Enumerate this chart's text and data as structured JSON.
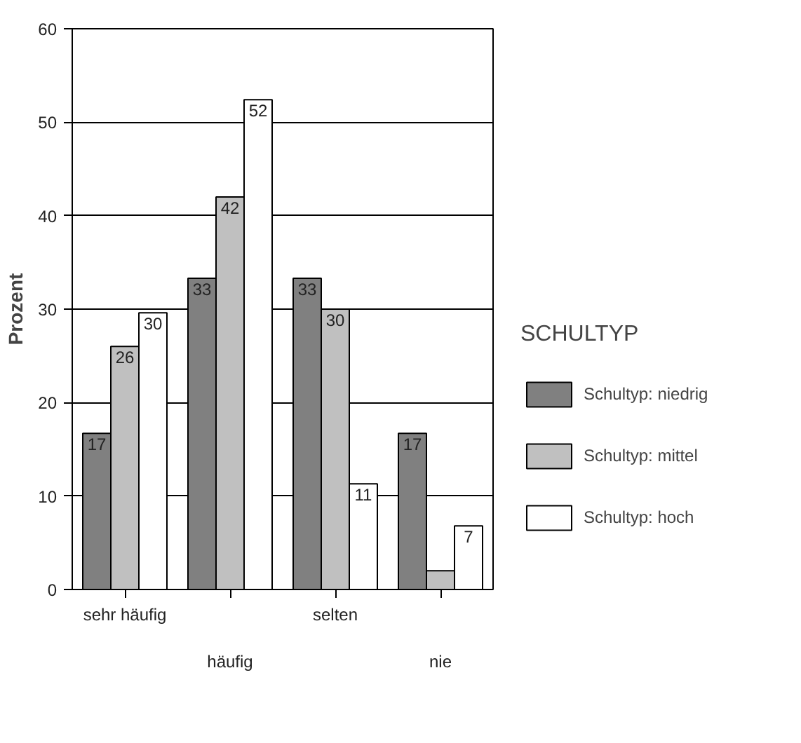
{
  "chart_data": {
    "type": "bar",
    "ylabel": "Prozent",
    "legend_title": "SCHULTYP",
    "legend": "right",
    "grid": "y",
    "categories": [
      "sehr häufig",
      "häufig",
      "selten",
      "nie"
    ],
    "ylim": [
      0,
      60
    ],
    "yticks": [
      0,
      10,
      20,
      30,
      40,
      50,
      60
    ],
    "series": [
      {
        "name": "Schultyp: niedrig",
        "color": "#808080",
        "values": [
          16.7,
          33.3,
          33.3,
          16.7
        ],
        "value_labels": [
          "17",
          "33",
          "33",
          "17"
        ]
      },
      {
        "name": "Schultyp: mittel",
        "color": "#c0c0c0",
        "values": [
          26,
          42,
          30,
          2
        ],
        "value_labels": [
          "26",
          "42",
          "30",
          null
        ]
      },
      {
        "name": "Schultyp: hoch",
        "color": "#ffffff",
        "values": [
          29.6,
          52.4,
          11.3,
          6.8
        ],
        "value_labels": [
          "30",
          "52",
          "11",
          "7"
        ]
      }
    ]
  }
}
